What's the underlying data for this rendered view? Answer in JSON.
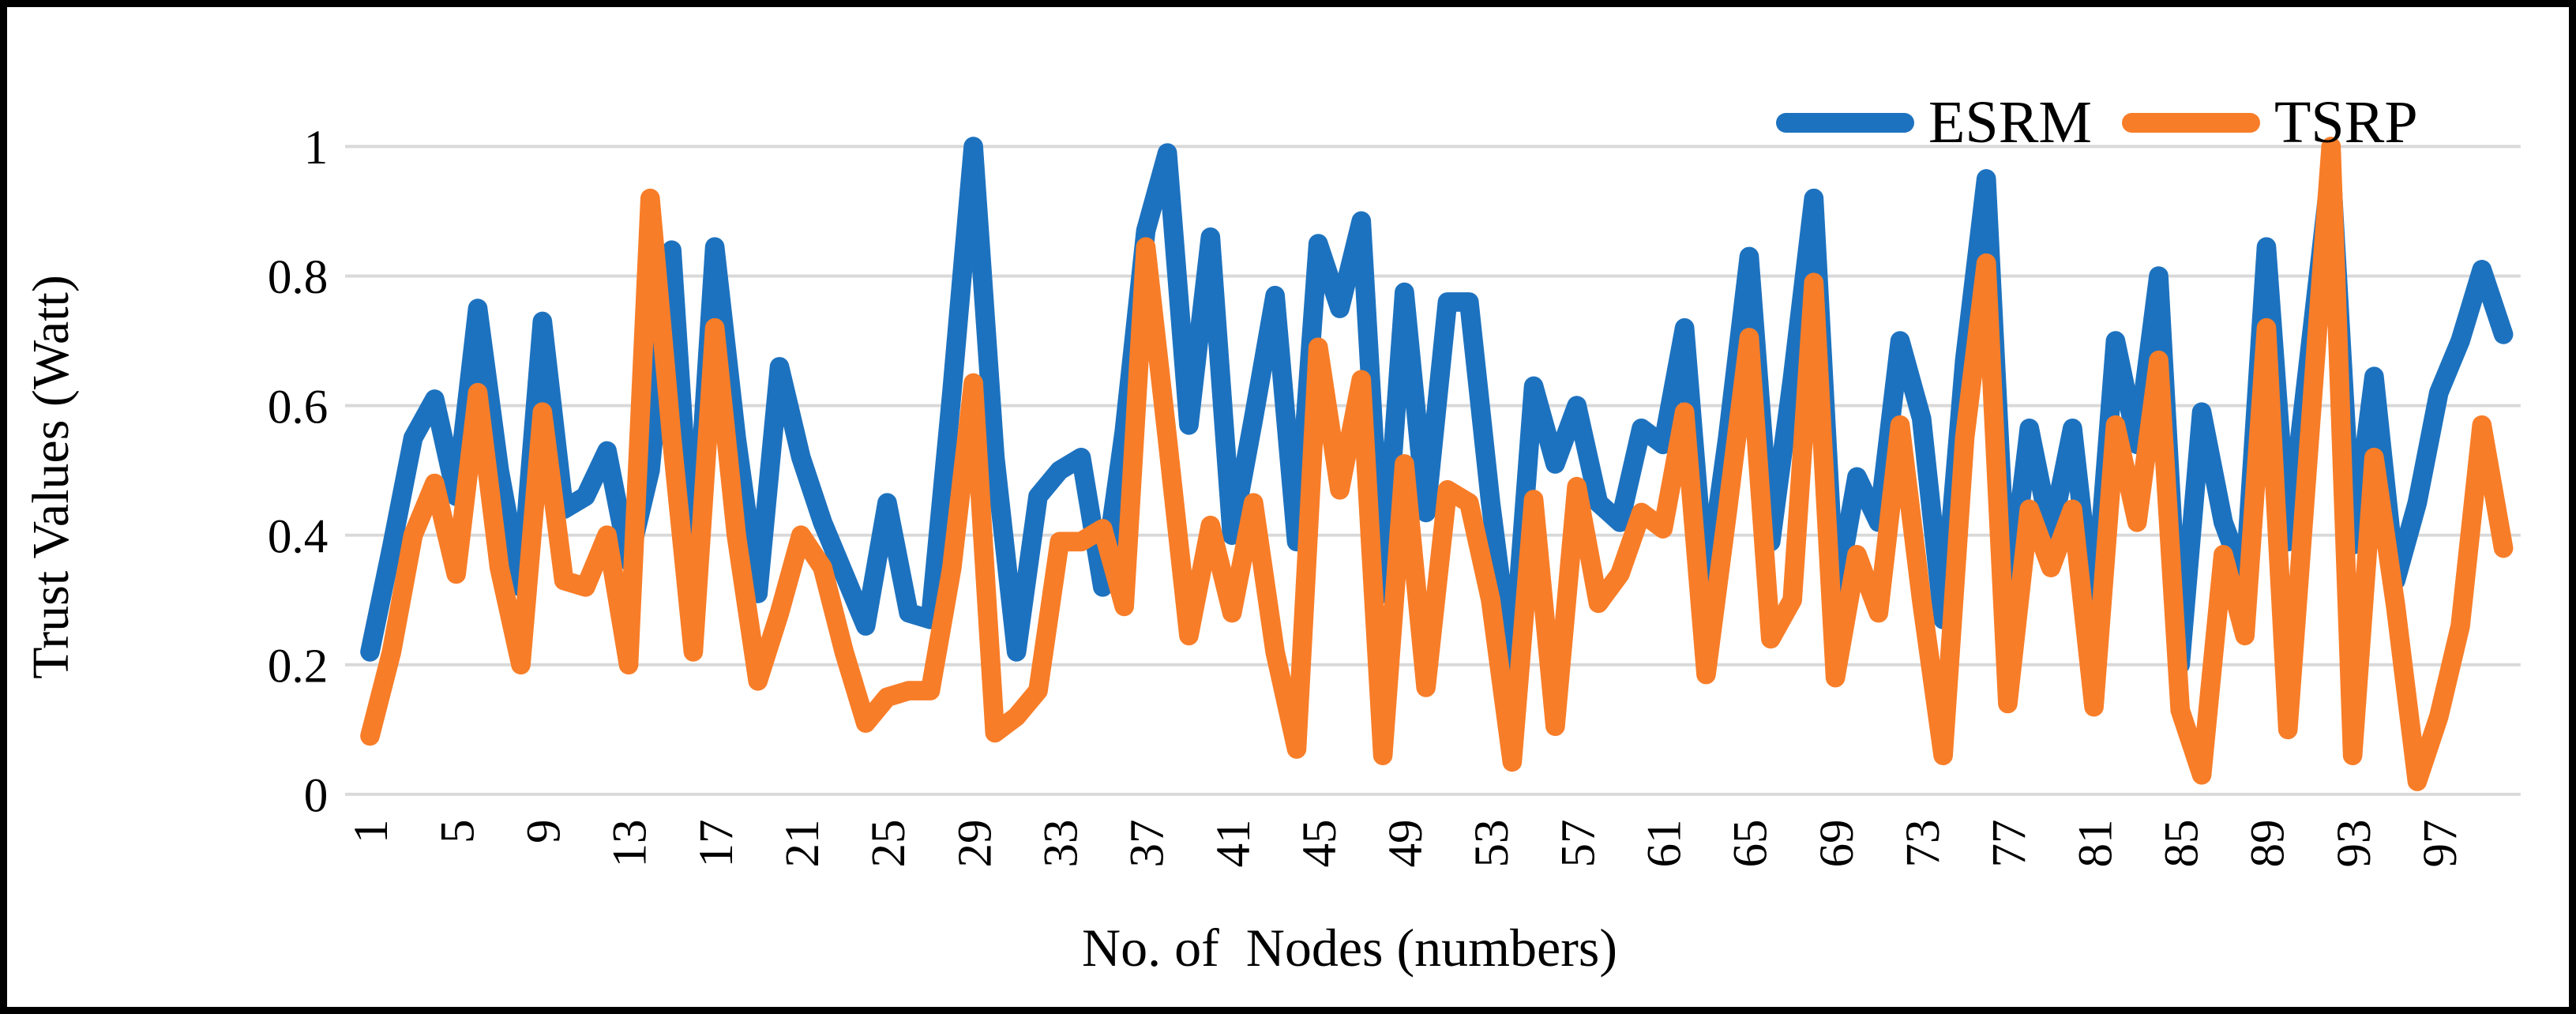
{
  "y_axis": {
    "title": "Trust Values (Watt)",
    "ticks": [
      "1",
      "0.8",
      "0.6",
      "0.4",
      "0.2",
      "0"
    ]
  },
  "x_axis": {
    "title": "No. of  Nodes (numbers)",
    "ticks": [
      "1",
      "5",
      "9",
      "13",
      "17",
      "21",
      "25",
      "29",
      "33",
      "37",
      "41",
      "45",
      "49",
      "53",
      "57",
      "61",
      "65",
      "69",
      "73",
      "77",
      "81",
      "85",
      "89",
      "93",
      "97"
    ],
    "tick_step": 4
  },
  "legend": {
    "items": [
      {
        "label": "ESRM",
        "color": "#1D72BF"
      },
      {
        "label": "TSRP",
        "color": "#F87D28"
      }
    ]
  },
  "colors": {
    "grid": "#D9D9D9",
    "text": "#000000",
    "esrm_blue": "#1D72BF",
    "tsrp_orange": "#F87D28"
  },
  "chart_data": {
    "type": "line",
    "title": "",
    "xlabel": "No. of  Nodes (numbers)",
    "ylabel": "Trust Values (Watt)",
    "x_start": 1,
    "x_end": 100,
    "ylim": [
      0,
      1
    ],
    "y_tick_interval": 0.2,
    "grid": true,
    "legend_position": "top-right",
    "series": [
      {
        "name": "ESRM",
        "color": "#1D72BF",
        "values": [
          0.22,
          0.38,
          0.55,
          0.61,
          0.46,
          0.75,
          0.5,
          0.32,
          0.73,
          0.44,
          0.46,
          0.53,
          0.36,
          0.5,
          0.84,
          0.33,
          0.845,
          0.55,
          0.31,
          0.66,
          0.52,
          0.42,
          0.34,
          0.26,
          0.45,
          0.28,
          0.27,
          0.62,
          1.0,
          0.52,
          0.22,
          0.46,
          0.5,
          0.52,
          0.32,
          0.56,
          0.87,
          0.99,
          0.57,
          0.86,
          0.4,
          0.58,
          0.77,
          0.39,
          0.85,
          0.75,
          0.885,
          0.31,
          0.775,
          0.435,
          0.76,
          0.76,
          0.45,
          0.19,
          0.63,
          0.51,
          0.6,
          0.45,
          0.42,
          0.565,
          0.54,
          0.72,
          0.31,
          0.55,
          0.83,
          0.39,
          0.64,
          0.92,
          0.3,
          0.49,
          0.42,
          0.7,
          0.58,
          0.27,
          0.67,
          0.95,
          0.285,
          0.565,
          0.4,
          0.565,
          0.27,
          0.7,
          0.54,
          0.8,
          0.2,
          0.59,
          0.42,
          0.33,
          0.845,
          0.39,
          0.68,
          0.97,
          0.385,
          0.645,
          0.33,
          0.45,
          0.62,
          0.7,
          0.81,
          0.71
        ]
      },
      {
        "name": "TSRP",
        "color": "#F87D28",
        "values": [
          0.09,
          0.22,
          0.4,
          0.48,
          0.34,
          0.62,
          0.35,
          0.2,
          0.59,
          0.33,
          0.32,
          0.4,
          0.2,
          0.92,
          0.55,
          0.22,
          0.72,
          0.4,
          0.175,
          0.28,
          0.4,
          0.35,
          0.22,
          0.11,
          0.15,
          0.16,
          0.16,
          0.35,
          0.635,
          0.095,
          0.12,
          0.16,
          0.39,
          0.39,
          0.41,
          0.29,
          0.845,
          0.55,
          0.245,
          0.415,
          0.28,
          0.45,
          0.22,
          0.07,
          0.69,
          0.47,
          0.64,
          0.06,
          0.51,
          0.165,
          0.47,
          0.45,
          0.3,
          0.05,
          0.455,
          0.105,
          0.475,
          0.295,
          0.34,
          0.435,
          0.41,
          0.59,
          0.185,
          0.44,
          0.705,
          0.24,
          0.3,
          0.79,
          0.18,
          0.37,
          0.28,
          0.57,
          0.3,
          0.06,
          0.55,
          0.82,
          0.14,
          0.44,
          0.35,
          0.44,
          0.135,
          0.57,
          0.42,
          0.67,
          0.13,
          0.03,
          0.37,
          0.245,
          0.72,
          0.1,
          0.55,
          1.0,
          0.06,
          0.52,
          0.29,
          0.02,
          0.12,
          0.26,
          0.57,
          0.38
        ]
      }
    ]
  }
}
